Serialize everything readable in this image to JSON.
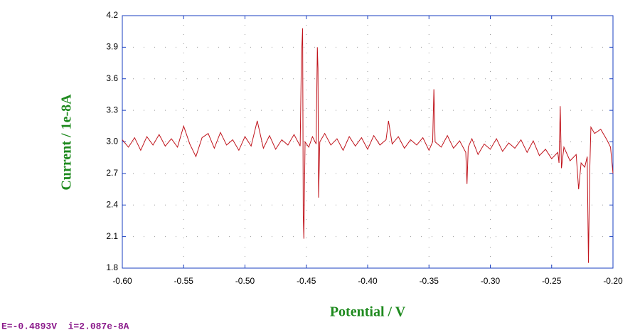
{
  "chart_data": {
    "type": "line",
    "xlabel": "Potential / V",
    "ylabel": "Current / 1e-8A",
    "annotation": "E=-0.4893V  i=2.087e-8A",
    "color": "#c0141c",
    "axis_color": "#1a3fc0",
    "grid": true,
    "xlim": [
      -0.6,
      -0.2
    ],
    "ylim": [
      1.8,
      4.2
    ],
    "xticks": [
      {
        "value": -0.6,
        "label": "-0.60"
      },
      -0.55,
      {
        "value": -0.5,
        "label": "-0.50"
      },
      -0.45,
      {
        "value": -0.4,
        "label": "-0.40"
      },
      -0.35,
      {
        "value": -0.3,
        "label": "-0.30"
      },
      -0.25,
      {
        "value": -0.2,
        "label": "-0.20"
      }
    ],
    "yticks": [
      1.8,
      2.1,
      2.4,
      2.7,
      {
        "value": 3.0,
        "label": "3.0"
      },
      3.3,
      3.6,
      3.9,
      4.2
    ],
    "x": [
      -0.6,
      -0.595,
      -0.59,
      -0.585,
      -0.58,
      -0.575,
      -0.57,
      -0.565,
      -0.56,
      -0.555,
      -0.55,
      -0.545,
      -0.54,
      -0.535,
      -0.53,
      -0.525,
      -0.52,
      -0.515,
      -0.51,
      -0.505,
      -0.5,
      -0.495,
      -0.49,
      -0.485,
      -0.48,
      -0.475,
      -0.47,
      -0.465,
      -0.46,
      -0.455,
      -0.454,
      -0.453,
      -0.4525,
      -0.452,
      -0.451,
      -0.448,
      -0.445,
      -0.442,
      -0.441,
      -0.4405,
      -0.44,
      -0.439,
      -0.435,
      -0.43,
      -0.425,
      -0.42,
      -0.415,
      -0.41,
      -0.405,
      -0.4,
      -0.395,
      -0.39,
      -0.385,
      -0.383,
      -0.38,
      -0.375,
      -0.37,
      -0.365,
      -0.36,
      -0.355,
      -0.35,
      -0.347,
      -0.346,
      -0.345,
      -0.34,
      -0.335,
      -0.33,
      -0.325,
      -0.32,
      -0.319,
      -0.318,
      -0.315,
      -0.31,
      -0.305,
      -0.3,
      -0.295,
      -0.29,
      -0.285,
      -0.28,
      -0.275,
      -0.27,
      -0.265,
      -0.26,
      -0.255,
      -0.25,
      -0.245,
      -0.244,
      -0.243,
      -0.242,
      -0.24,
      -0.235,
      -0.23,
      -0.228,
      -0.226,
      -0.223,
      -0.221,
      -0.22,
      -0.219,
      -0.218,
      -0.215,
      -0.21,
      -0.205,
      -0.202,
      -0.2
    ],
    "values": [
      3.02,
      2.95,
      3.04,
      2.92,
      3.05,
      2.97,
      3.07,
      2.96,
      3.03,
      2.95,
      3.15,
      2.98,
      2.86,
      3.04,
      3.08,
      2.94,
      3.09,
      2.97,
      3.02,
      2.92,
      3.05,
      2.96,
      3.2,
      2.94,
      3.06,
      2.93,
      3.02,
      2.97,
      3.07,
      2.96,
      3.8,
      4.08,
      2.3,
      2.08,
      3.0,
      2.95,
      3.05,
      2.98,
      3.9,
      3.7,
      2.47,
      3.0,
      3.08,
      2.97,
      3.03,
      2.92,
      3.05,
      2.96,
      3.04,
      2.93,
      3.06,
      2.97,
      3.02,
      3.2,
      2.98,
      3.05,
      2.94,
      3.02,
      2.97,
      3.04,
      2.92,
      3.0,
      3.5,
      3.0,
      2.95,
      3.06,
      2.94,
      3.01,
      2.9,
      2.6,
      2.95,
      3.03,
      2.88,
      2.98,
      2.93,
      3.03,
      2.91,
      2.99,
      2.94,
      3.02,
      2.9,
      3.01,
      2.87,
      2.93,
      2.84,
      2.9,
      2.8,
      3.34,
      2.75,
      2.95,
      2.82,
      2.88,
      2.55,
      2.8,
      2.76,
      2.86,
      1.85,
      2.7,
      3.14,
      3.08,
      3.12,
      3.02,
      2.95,
      2.7
    ]
  }
}
